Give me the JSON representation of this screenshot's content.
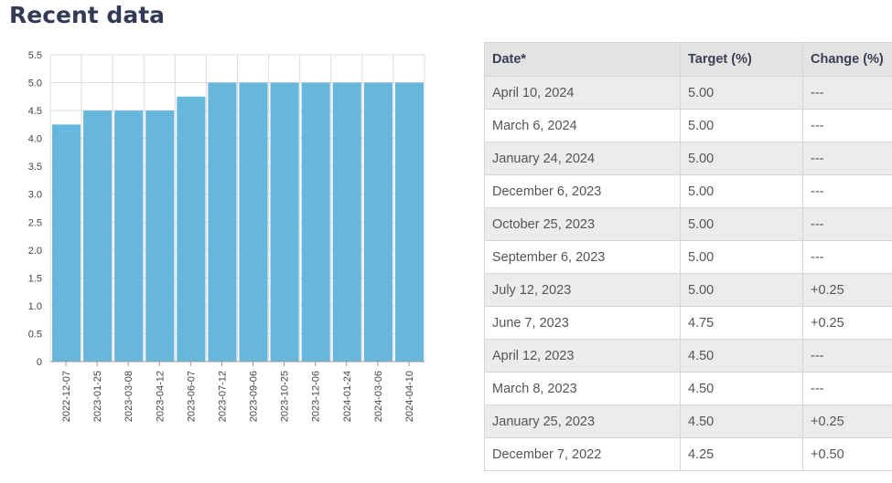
{
  "page": {
    "title": "Recent data"
  },
  "colors": {
    "bar": "#67b6db",
    "grid": "#dcdcdc",
    "axis": "#999999",
    "title": "#333a56"
  },
  "chart_data": {
    "type": "bar",
    "title": "",
    "xlabel": "",
    "ylabel": "",
    "ylim": [
      0,
      5.5
    ],
    "yticks": [
      "0",
      "0.5",
      "1.0",
      "1.5",
      "2.0",
      "2.5",
      "3.0",
      "3.5",
      "4.0",
      "4.5",
      "5.0",
      "5.5"
    ],
    "grid": true,
    "legend": "none",
    "categories": [
      "2022-12-07",
      "2023-01-25",
      "2023-03-08",
      "2023-04-12",
      "2023-06-07",
      "2023-07-12",
      "2023-09-06",
      "2023-10-25",
      "2023-12-06",
      "2024-01-24",
      "2024-03-06",
      "2024-04-10"
    ],
    "values": [
      4.25,
      4.5,
      4.5,
      4.5,
      4.75,
      5.0,
      5.0,
      5.0,
      5.0,
      5.0,
      5.0,
      5.0
    ]
  },
  "table": {
    "headers": [
      "Date*",
      "Target (%)",
      "Change (%)"
    ],
    "rows": [
      [
        "April 10, 2024",
        "5.00",
        "---"
      ],
      [
        "March 6, 2024",
        "5.00",
        "---"
      ],
      [
        "January 24, 2024",
        "5.00",
        "---"
      ],
      [
        "December 6, 2023",
        "5.00",
        "---"
      ],
      [
        "October 25, 2023",
        "5.00",
        "---"
      ],
      [
        "September 6, 2023",
        "5.00",
        "---"
      ],
      [
        "July 12, 2023",
        "5.00",
        "+0.25"
      ],
      [
        "June 7, 2023",
        "4.75",
        "+0.25"
      ],
      [
        "April 12, 2023",
        "4.50",
        "---"
      ],
      [
        "March 8, 2023",
        "4.50",
        "---"
      ],
      [
        "January 25, 2023",
        "4.50",
        "+0.25"
      ],
      [
        "December 7, 2022",
        "4.25",
        "+0.50"
      ]
    ]
  }
}
